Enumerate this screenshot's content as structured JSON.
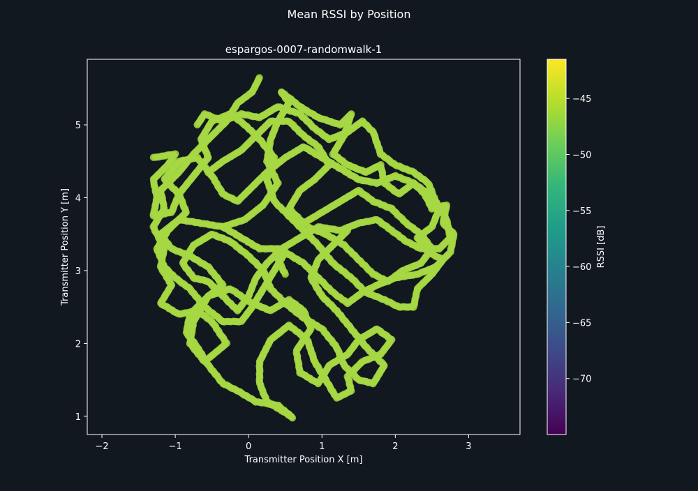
{
  "chart_data": {
    "type": "scatter",
    "suptitle": "Mean RSSI by Position",
    "title": "espargos-0007-randomwalk-1",
    "xlabel": "Transmitter Position X [m]",
    "ylabel": "Transmitter Position Y [m]",
    "xlim": [
      -2.2,
      3.7
    ],
    "ylim": [
      0.75,
      5.9
    ],
    "xticks": [
      -2,
      -1,
      0,
      1,
      2,
      3
    ],
    "xtick_labels": [
      "−2",
      "−1",
      "0",
      "1",
      "2",
      "3"
    ],
    "yticks": [
      1,
      2,
      3,
      4,
      5
    ],
    "ytick_labels": [
      "1",
      "2",
      "3",
      "4",
      "5"
    ],
    "grid": false,
    "colorbar": {
      "label": "RSSI [dB]",
      "range": [
        -75,
        -41.5
      ],
      "ticks": [
        -45,
        -50,
        -55,
        -60,
        -65,
        -70
      ],
      "tick_labels": [
        "−45",
        "−50",
        "−55",
        "−60",
        "−65",
        "−70"
      ],
      "colormap": [
        "#440154",
        "#482878",
        "#3e4989",
        "#31688e",
        "#26828e",
        "#1f9e89",
        "#35b779",
        "#6ece58",
        "#b5de2b",
        "#fde725"
      ]
    },
    "series": [
      {
        "marker_color": "#a6d843",
        "approx_rssi": -46,
        "paths": [
          [
            [
              0.15,
              5.65
            ],
            [
              0.05,
              5.45
            ],
            [
              -0.15,
              5.3
            ],
            [
              -0.3,
              5.05
            ],
            [
              -0.5,
              4.85
            ],
            [
              -0.75,
              4.6
            ],
            [
              -0.95,
              4.35
            ],
            [
              -1.2,
              4.1
            ],
            [
              -1.15,
              3.85
            ],
            [
              -1.3,
              3.6
            ],
            [
              -1.15,
              3.3
            ],
            [
              -1.2,
              3.05
            ],
            [
              -1.05,
              2.8
            ],
            [
              -1.2,
              2.55
            ],
            [
              -0.95,
              2.4
            ],
            [
              -0.7,
              2.45
            ],
            [
              -0.5,
              2.3
            ],
            [
              -0.3,
              2.0
            ],
            [
              -0.6,
              1.75
            ],
            [
              -0.8,
              2.0
            ],
            [
              -0.75,
              2.3
            ],
            [
              -0.55,
              2.65
            ],
            [
              -0.25,
              2.75
            ],
            [
              0.05,
              2.55
            ],
            [
              0.3,
              2.45
            ],
            [
              0.55,
              2.6
            ],
            [
              0.75,
              2.45
            ],
            [
              0.85,
              2.2
            ],
            [
              0.65,
              1.9
            ],
            [
              0.7,
              1.6
            ],
            [
              0.95,
              1.45
            ],
            [
              1.1,
              1.7
            ],
            [
              1.35,
              1.85
            ],
            [
              1.5,
              2.05
            ],
            [
              1.75,
              2.2
            ],
            [
              1.95,
              2.05
            ],
            [
              1.8,
              1.85
            ],
            [
              1.55,
              1.75
            ],
            [
              1.35,
              1.55
            ],
            [
              1.4,
              1.35
            ],
            [
              1.2,
              1.25
            ],
            [
              1.05,
              1.5
            ]
          ],
          [
            [
              1.05,
              1.5
            ],
            [
              0.9,
              1.75
            ],
            [
              0.8,
              2.05
            ],
            [
              0.55,
              2.25
            ],
            [
              0.3,
              2.05
            ],
            [
              0.15,
              1.75
            ],
            [
              0.15,
              1.45
            ],
            [
              0.25,
              1.2
            ],
            [
              0.5,
              1.05
            ],
            [
              0.6,
              0.98
            ],
            [
              0.4,
              1.15
            ],
            [
              0.1,
              1.2
            ],
            [
              -0.15,
              1.35
            ],
            [
              -0.35,
              1.45
            ],
            [
              -0.55,
              1.7
            ],
            [
              -0.7,
              1.95
            ],
            [
              -0.85,
              2.15
            ],
            [
              -0.8,
              2.4
            ],
            [
              -0.55,
              2.65
            ],
            [
              -0.35,
              2.8
            ],
            [
              -0.55,
              3.05
            ],
            [
              -0.8,
              3.2
            ],
            [
              -1.05,
              3.3
            ],
            [
              -1.2,
              3.5
            ],
            [
              -0.95,
              3.7
            ],
            [
              -0.65,
              3.65
            ],
            [
              -0.35,
              3.6
            ],
            [
              -0.05,
              3.7
            ],
            [
              0.2,
              3.9
            ],
            [
              0.4,
              4.2
            ],
            [
              0.25,
              4.5
            ],
            [
              0.3,
              4.8
            ],
            [
              0.4,
              5.05
            ],
            [
              0.55,
              5.3
            ],
            [
              0.45,
              5.45
            ]
          ],
          [
            [
              0.45,
              5.45
            ],
            [
              0.7,
              5.25
            ],
            [
              0.95,
              5.1
            ],
            [
              1.25,
              5.0
            ],
            [
              1.4,
              5.15
            ],
            [
              1.3,
              4.85
            ],
            [
              1.15,
              4.6
            ],
            [
              1.35,
              4.45
            ],
            [
              1.6,
              4.35
            ],
            [
              1.8,
              4.45
            ],
            [
              1.85,
              4.2
            ],
            [
              2.05,
              4.05
            ],
            [
              2.25,
              4.2
            ],
            [
              2.4,
              4.05
            ],
            [
              2.5,
              3.85
            ],
            [
              2.7,
              3.9
            ],
            [
              2.65,
              3.65
            ],
            [
              2.8,
              3.5
            ],
            [
              2.75,
              3.25
            ],
            [
              2.55,
              3.05
            ],
            [
              2.3,
              2.95
            ],
            [
              2.0,
              2.9
            ],
            [
              1.75,
              2.8
            ],
            [
              1.55,
              2.7
            ],
            [
              1.35,
              2.55
            ],
            [
              1.15,
              2.7
            ],
            [
              0.95,
              2.9
            ],
            [
              0.75,
              3.1
            ],
            [
              0.5,
              3.25
            ],
            [
              0.35,
              3.0
            ],
            [
              0.2,
              2.75
            ],
            [
              0.05,
              2.5
            ],
            [
              -0.1,
              2.3
            ],
            [
              -0.35,
              2.3
            ]
          ],
          [
            [
              -0.35,
              2.3
            ],
            [
              -0.6,
              2.5
            ],
            [
              -0.8,
              2.75
            ],
            [
              -1.0,
              2.9
            ],
            [
              -1.15,
              3.05
            ],
            [
              -1.25,
              3.3
            ],
            [
              -1.1,
              3.55
            ],
            [
              -0.85,
              3.8
            ],
            [
              -0.95,
              4.05
            ],
            [
              -1.15,
              4.25
            ],
            [
              -0.95,
              4.5
            ],
            [
              -0.7,
              4.55
            ],
            [
              -0.5,
              4.3
            ],
            [
              -0.35,
              4.05
            ],
            [
              -0.15,
              3.95
            ],
            [
              0.05,
              4.15
            ],
            [
              0.25,
              4.35
            ],
            [
              0.5,
              4.55
            ],
            [
              0.75,
              4.7
            ],
            [
              1.0,
              4.55
            ],
            [
              1.25,
              4.4
            ],
            [
              1.5,
              4.25
            ],
            [
              1.75,
              4.2
            ],
            [
              2.0,
              4.3
            ],
            [
              2.25,
              4.2
            ],
            [
              2.45,
              4.05
            ]
          ],
          [
            [
              2.45,
              4.05
            ],
            [
              2.6,
              3.85
            ],
            [
              2.5,
              3.6
            ],
            [
              2.3,
              3.45
            ],
            [
              2.45,
              3.25
            ],
            [
              2.65,
              3.15
            ],
            [
              2.5,
              2.95
            ],
            [
              2.3,
              2.75
            ],
            [
              2.25,
              2.5
            ],
            [
              2.05,
              2.5
            ],
            [
              1.85,
              2.6
            ],
            [
              1.6,
              2.7
            ],
            [
              1.4,
              2.9
            ],
            [
              1.15,
              3.1
            ],
            [
              0.95,
              3.35
            ],
            [
              0.75,
              3.55
            ],
            [
              0.55,
              3.75
            ],
            [
              0.35,
              3.95
            ],
            [
              0.25,
              4.25
            ],
            [
              0.35,
              4.55
            ],
            [
              0.15,
              4.8
            ],
            [
              -0.05,
              5.0
            ],
            [
              -0.25,
              5.15
            ],
            [
              -0.5,
              5.05
            ],
            [
              -0.65,
              4.8
            ],
            [
              -0.55,
              4.55
            ],
            [
              -0.75,
              4.3
            ],
            [
              -0.95,
              4.05
            ],
            [
              -1.05,
              3.8
            ],
            [
              -1.3,
              3.75
            ],
            [
              -1.25,
              4.0
            ],
            [
              -1.3,
              4.25
            ],
            [
              -1.1,
              4.45
            ],
            [
              -1.0,
              4.6
            ],
            [
              -1.3,
              4.55
            ]
          ],
          [
            [
              -0.35,
              3.6
            ],
            [
              -0.1,
              3.45
            ],
            [
              0.15,
              3.3
            ],
            [
              0.45,
              3.3
            ],
            [
              0.7,
              3.45
            ],
            [
              0.95,
              3.6
            ],
            [
              1.25,
              3.55
            ],
            [
              1.5,
              3.65
            ],
            [
              1.75,
              3.7
            ],
            [
              1.95,
              3.55
            ],
            [
              2.15,
              3.4
            ],
            [
              2.35,
              3.3
            ],
            [
              2.6,
              3.3
            ],
            [
              2.75,
              3.45
            ],
            [
              2.7,
              3.7
            ],
            [
              2.55,
              3.95
            ],
            [
              2.45,
              4.2
            ],
            [
              2.25,
              4.35
            ],
            [
              2.0,
              4.45
            ],
            [
              1.8,
              4.6
            ],
            [
              1.7,
              4.9
            ],
            [
              1.55,
              5.05
            ],
            [
              1.35,
              4.9
            ],
            [
              1.1,
              4.8
            ],
            [
              0.9,
              4.95
            ],
            [
              0.7,
              5.15
            ],
            [
              0.4,
              5.25
            ],
            [
              0.15,
              5.1
            ],
            [
              -0.1,
              5.15
            ],
            [
              -0.35,
              5.05
            ],
            [
              -0.6,
              5.15
            ],
            [
              -0.7,
              5.0
            ]
          ],
          [
            [
              0.5,
              2.95
            ],
            [
              0.4,
              3.15
            ],
            [
              0.45,
              3.3
            ],
            [
              0.25,
              3.1
            ],
            [
              0.1,
              2.9
            ],
            [
              0.0,
              2.65
            ],
            [
              -0.15,
              2.45
            ],
            [
              -0.35,
              2.65
            ],
            [
              -0.55,
              2.85
            ],
            [
              -0.75,
              2.9
            ],
            [
              -0.9,
              3.1
            ],
            [
              -0.75,
              3.35
            ],
            [
              -0.5,
              3.5
            ],
            [
              -0.25,
              3.4
            ],
            [
              0.0,
              3.2
            ],
            [
              0.2,
              3.0
            ],
            [
              0.3,
              2.75
            ],
            [
              0.5,
              2.55
            ],
            [
              0.75,
              2.35
            ],
            [
              1.0,
              2.2
            ],
            [
              1.2,
              1.95
            ],
            [
              1.3,
              1.7
            ],
            [
              1.5,
              1.5
            ],
            [
              1.7,
              1.45
            ],
            [
              1.85,
              1.7
            ],
            [
              1.6,
              1.95
            ],
            [
              1.4,
              2.2
            ],
            [
              1.2,
              2.45
            ],
            [
              1.0,
              2.65
            ],
            [
              0.85,
              2.9
            ],
            [
              0.95,
              3.15
            ],
            [
              1.15,
              3.35
            ],
            [
              1.35,
              3.55
            ]
          ],
          [
            [
              -0.55,
              4.35
            ],
            [
              -0.35,
              4.5
            ],
            [
              -0.1,
              4.65
            ],
            [
              0.1,
              4.85
            ],
            [
              0.3,
              5.05
            ],
            [
              0.55,
              5.05
            ],
            [
              0.75,
              4.85
            ],
            [
              0.95,
              4.7
            ],
            [
              1.1,
              4.45
            ],
            [
              0.9,
              4.25
            ],
            [
              0.7,
              4.1
            ],
            [
              0.55,
              3.85
            ],
            [
              0.75,
              3.65
            ],
            [
              1.0,
              3.8
            ],
            [
              1.25,
              3.95
            ],
            [
              1.5,
              4.1
            ],
            [
              1.7,
              3.95
            ],
            [
              1.95,
              3.85
            ],
            [
              2.15,
              3.65
            ],
            [
              2.35,
              3.5
            ],
            [
              2.5,
              3.3
            ],
            [
              2.35,
              3.1
            ],
            [
              2.1,
              3.0
            ],
            [
              1.9,
              2.85
            ],
            [
              1.7,
              2.95
            ],
            [
              1.5,
              3.15
            ],
            [
              1.3,
              3.35
            ],
            [
              1.05,
              3.5
            ],
            [
              0.8,
              3.6
            ]
          ]
        ]
      }
    ]
  }
}
